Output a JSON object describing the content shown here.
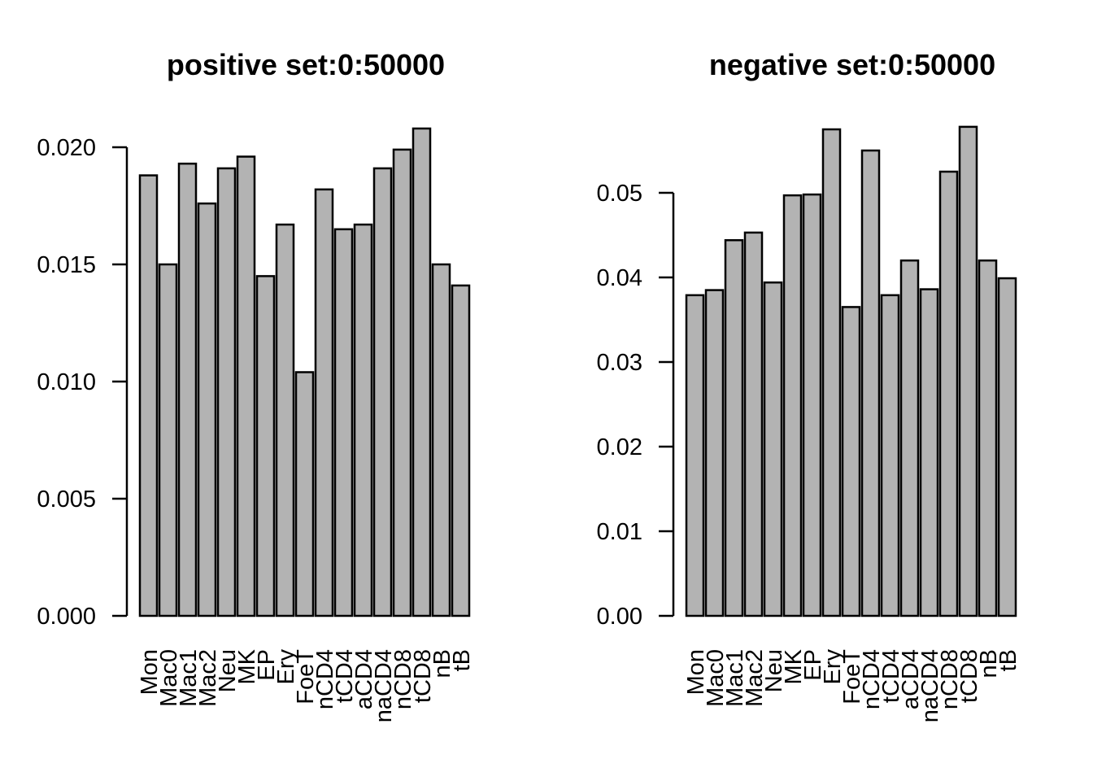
{
  "figure": {
    "background_color": "#ffffff",
    "bar_fill_color": "#b3b3b3",
    "bar_stroke_color": "#000000",
    "axis_color": "#000000",
    "text_color": "#000000"
  },
  "chart_data": [
    {
      "type": "bar",
      "title": "positive set:0:50000",
      "categories": [
        "Mon",
        "Mac0",
        "Mac1",
        "Mac2",
        "Neu",
        "MK",
        "EP",
        "Ery",
        "FoeT",
        "nCD4",
        "tCD4",
        "aCD4",
        "naCD4",
        "nCD8",
        "tCD8",
        "nB",
        "tB"
      ],
      "values": [
        0.0188,
        0.015,
        0.0193,
        0.0176,
        0.0191,
        0.0196,
        0.0145,
        0.0167,
        0.0104,
        0.0182,
        0.0165,
        0.0167,
        0.0191,
        0.0199,
        0.0208,
        0.015,
        0.0141
      ],
      "xlabel": "",
      "ylabel": "",
      "ylim": [
        0,
        0.0208
      ],
      "yticks": [
        0,
        0.005,
        0.01,
        0.015,
        0.02
      ],
      "ytick_labels": [
        "0.000",
        "0.005",
        "0.010",
        "0.015",
        "0.020"
      ],
      "xtick_rotation": 90,
      "grid": false,
      "legend": "none"
    },
    {
      "type": "bar",
      "title": "negative set:0:50000",
      "categories": [
        "Mon",
        "Mac0",
        "Mac1",
        "Mac2",
        "Neu",
        "MK",
        "EP",
        "Ery",
        "FoeT",
        "nCD4",
        "tCD4",
        "aCD4",
        "naCD4",
        "nCD8",
        "tCD8",
        "nB",
        "tB"
      ],
      "values": [
        0.0379,
        0.0385,
        0.0444,
        0.0453,
        0.0394,
        0.0497,
        0.0498,
        0.0575,
        0.0365,
        0.055,
        0.0379,
        0.042,
        0.0386,
        0.0525,
        0.0578,
        0.042,
        0.0399
      ],
      "xlabel": "",
      "ylabel": "",
      "ylim": [
        0,
        0.0578
      ],
      "yticks": [
        0,
        0.01,
        0.02,
        0.03,
        0.04,
        0.05
      ],
      "ytick_labels": [
        "0.00",
        "0.01",
        "0.02",
        "0.03",
        "0.04",
        "0.05"
      ],
      "xtick_rotation": 90,
      "grid": false,
      "legend": "none"
    }
  ]
}
